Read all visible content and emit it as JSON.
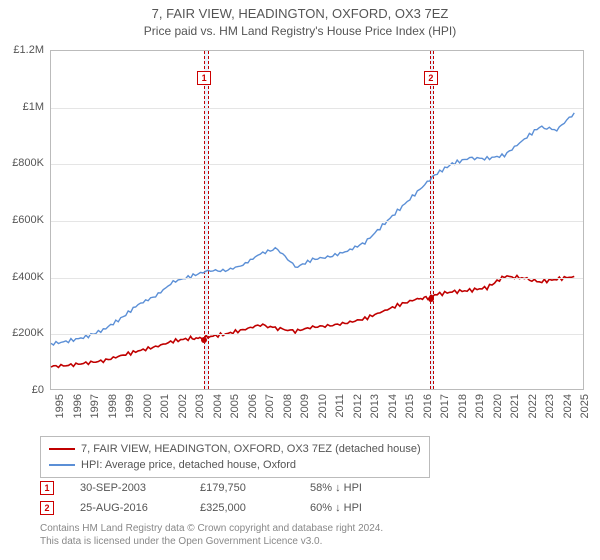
{
  "title": "7, FAIR VIEW, HEADINGTON, OXFORD, OX3 7EZ",
  "subtitle": "Price paid vs. HM Land Registry's House Price Index (HPI)",
  "title_fontsize": 13,
  "subtitle_fontsize": 12,
  "chart": {
    "type": "line",
    "background_color": "#ffffff",
    "grid_color": "#e5e5e5",
    "plot_border_color": "#bbbbbb",
    "x_years": [
      "1995",
      "1996",
      "1997",
      "1998",
      "1999",
      "2000",
      "2001",
      "2002",
      "2003",
      "2004",
      "2005",
      "2006",
      "2007",
      "2008",
      "2009",
      "2010",
      "2011",
      "2012",
      "2013",
      "2014",
      "2015",
      "2016",
      "2017",
      "2018",
      "2019",
      "2020",
      "2021",
      "2022",
      "2023",
      "2024",
      "2025"
    ],
    "x_range": [
      1995,
      2025.5
    ],
    "ylim": [
      0,
      1200000
    ],
    "yticks": [
      0,
      200000,
      400000,
      600000,
      800000,
      1000000,
      1200000
    ],
    "ytick_labels": [
      "£0",
      "£200K",
      "£400K",
      "£600K",
      "£800K",
      "£1M",
      "£1.2M"
    ],
    "highlight_bands": [
      {
        "start": 2003.75,
        "end": 2004.0,
        "fill": "#eaf2fb",
        "border_color": "#c00000"
      },
      {
        "start": 2016.65,
        "end": 2016.9,
        "fill": "#eaf2fb",
        "border_color": "#c00000"
      }
    ],
    "series": [
      {
        "name": "7, FAIR VIEW, HEADINGTON, OXFORD, OX3 7EZ (detached house)",
        "color": "#c00000",
        "line_width": 1.6,
        "x": [
          1995,
          1996,
          1997,
          1998,
          1999,
          2000,
          2001,
          2002,
          2003,
          2003.75,
          2004,
          2005,
          2006,
          2007,
          2008,
          2009,
          2010,
          2011,
          2012,
          2013,
          2014,
          2015,
          2016,
          2016.7,
          2017,
          2018,
          2019,
          2020,
          2021,
          2022,
          2023,
          2024,
          2025
        ],
        "y": [
          80000,
          84000,
          92000,
          100000,
          118000,
          135000,
          150000,
          170000,
          180000,
          179750,
          185000,
          195000,
          210000,
          228000,
          215000,
          205000,
          220000,
          225000,
          235000,
          250000,
          275000,
          300000,
          320000,
          325000,
          335000,
          345000,
          350000,
          360000,
          400000,
          395000,
          380000,
          390000,
          400000
        ]
      },
      {
        "name": "HPI: Average price, detached house, Oxford",
        "color": "#5b8fd6",
        "line_width": 1.4,
        "x": [
          1995,
          1996,
          1997,
          1998,
          1999,
          2000,
          2001,
          2002,
          2003,
          2004,
          2005,
          2006,
          2007,
          2008,
          2009,
          2010,
          2011,
          2012,
          2013,
          2014,
          2015,
          2016,
          2017,
          2018,
          2019,
          2020,
          2021,
          2022,
          2023,
          2024,
          2025
        ],
        "y": [
          160000,
          170000,
          185000,
          210000,
          250000,
          300000,
          330000,
          380000,
          400000,
          420000,
          420000,
          440000,
          480000,
          500000,
          430000,
          460000,
          470000,
          490000,
          520000,
          580000,
          640000,
          700000,
          760000,
          800000,
          820000,
          818000,
          830000,
          880000,
          930000,
          920000,
          980000
        ]
      }
    ],
    "marker_points": [
      {
        "label": "1",
        "x": 2003.75,
        "y": 179750,
        "color": "#c00000"
      },
      {
        "label": "2",
        "x": 2016.7,
        "y": 325000,
        "color": "#c00000"
      }
    ],
    "marker_label_y_offset": -20
  },
  "legend": {
    "rows": [
      {
        "color": "#c00000",
        "label": "7, FAIR VIEW, HEADINGTON, OXFORD, OX3 7EZ (detached house)"
      },
      {
        "color": "#5b8fd6",
        "label": "HPI: Average price, detached house, Oxford"
      }
    ]
  },
  "footnotes": [
    {
      "marker": "1",
      "date": "30-SEP-2003",
      "price": "£179,750",
      "delta": "58% ↓ HPI"
    },
    {
      "marker": "2",
      "date": "25-AUG-2016",
      "price": "£325,000",
      "delta": "60% ↓ HPI"
    }
  ],
  "attribution": {
    "line1": "Contains HM Land Registry data © Crown copyright and database right 2024.",
    "line2": "This data is licensed under the Open Government Licence v3.0."
  }
}
